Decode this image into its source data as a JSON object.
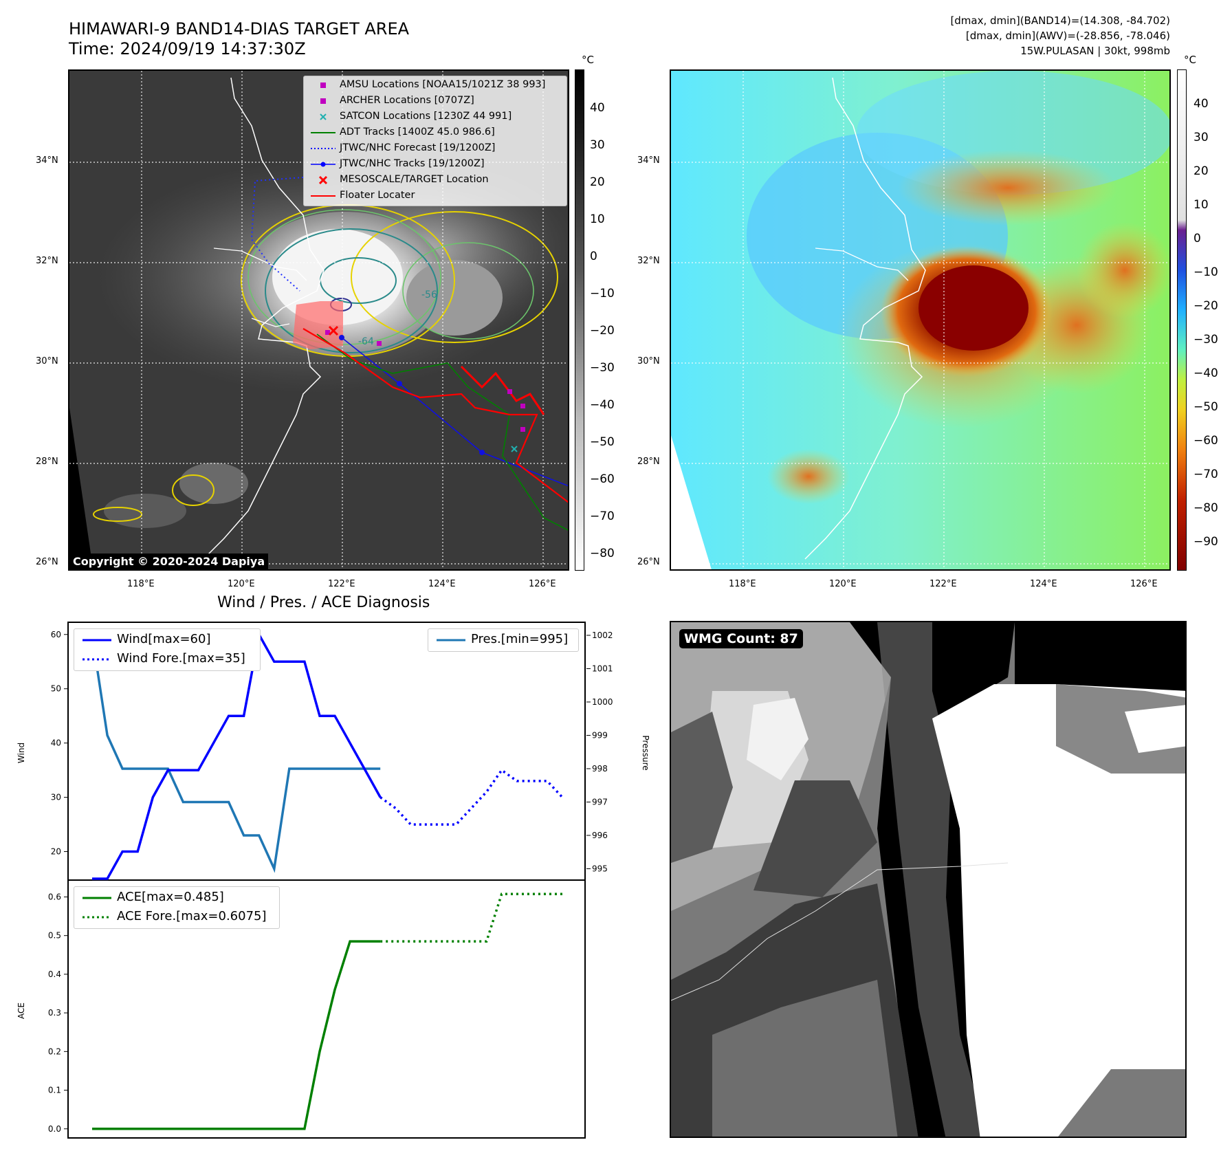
{
  "header": {
    "title_line1": "HIMAWARI-9 BAND14-DIAS TARGET AREA",
    "title_line2": "Time: 2024/09/19 14:37:30Z",
    "right_line1": "[dmax, dmin](BAND14)=(14.308, -84.702)",
    "right_line2": "[dmax, dmin](AWV)=(-28.856, -78.046)",
    "right_line3": "15W.PULASAN | 30kt, 998mb"
  },
  "map": {
    "lat_ticks": [
      "34°N",
      "32°N",
      "30°N",
      "28°N",
      "26°N"
    ],
    "lon_ticks": [
      "118°E",
      "120°E",
      "122°E",
      "124°E",
      "126°E"
    ],
    "copyright": "Copyright © 2020-2024 Dapiya",
    "unit": "°C",
    "ir_colorbar_ticks": [
      "40",
      "30",
      "20",
      "10",
      "0",
      "−10",
      "−20",
      "−30",
      "−40",
      "−50",
      "−60",
      "−70",
      "−80"
    ],
    "wv_colorbar_ticks": [
      "40",
      "30",
      "20",
      "10",
      "0",
      "−10",
      "−20",
      "−30",
      "−40",
      "−50",
      "−60",
      "−70",
      "−80",
      "−90"
    ],
    "contour_labels": [
      "-56",
      "-64"
    ],
    "legend": [
      {
        "label": "AMSU Locations [NOAA15/1021Z 38 993]",
        "symbol": "square",
        "color": "#c000c0"
      },
      {
        "label": "ARCHER Locations [0707Z]",
        "symbol": "square",
        "color": "#c000c0"
      },
      {
        "label": "SATCON Locations [1230Z 44 991]",
        "symbol": "x",
        "color": "#20b0b0"
      },
      {
        "label": "ADT Tracks [1400Z 45.0 986.6]",
        "symbol": "line",
        "color": "#008000"
      },
      {
        "label": "JTWC/NHC Forecast [19/1200Z]",
        "symbol": "dotted",
        "color": "#0000ff"
      },
      {
        "label": "JTWC/NHC Tracks [19/1200Z]",
        "symbol": "line-dot",
        "color": "#0000ff"
      },
      {
        "label": "MESOSCALE/TARGET Location",
        "symbol": "bigx",
        "color": "#ff0000"
      },
      {
        "label": "Floater Locater",
        "symbol": "line",
        "color": "#ff0000"
      }
    ]
  },
  "wmg": {
    "label": "WMG Count: 87"
  },
  "chart_data": [
    {
      "type": "line",
      "title": "Wind / Pres. / ACE Diagnosis",
      "ylabel": "Wind",
      "ylabel_right": "Pressure",
      "ylim": [
        15,
        62
      ],
      "ylim_right": [
        994.7,
        1002.35
      ],
      "yticks": [
        20,
        30,
        40,
        50,
        60
      ],
      "yticks_right": [
        995,
        996,
        997,
        998,
        999,
        1000,
        1001,
        1002
      ],
      "x": [
        0,
        1,
        2,
        3,
        4,
        5,
        6,
        7,
        8,
        9,
        10,
        11,
        12,
        13,
        14,
        15,
        16,
        17,
        18,
        19,
        20,
        21,
        22,
        23,
        24,
        25,
        26,
        27,
        28,
        29,
        30,
        31
      ],
      "series": [
        {
          "name": "Wind[max=60]",
          "style": "solid",
          "color": "#0000ff",
          "axis": "left",
          "x": [
            0,
            1,
            2,
            3,
            4,
            5,
            6,
            7,
            8,
            9,
            10,
            11,
            12,
            13,
            14,
            15,
            16,
            17,
            18,
            19
          ],
          "values": [
            15,
            15,
            20,
            20,
            30,
            35,
            35,
            35,
            40,
            45,
            45,
            60,
            55,
            55,
            55,
            45,
            45,
            40,
            35,
            30
          ]
        },
        {
          "name": "Wind Fore.[max=35]",
          "style": "dotted",
          "color": "#0000ff",
          "axis": "left",
          "x": [
            19,
            20,
            21,
            22,
            23,
            24,
            25,
            26,
            27,
            28,
            29,
            30,
            31
          ],
          "values": [
            30,
            28,
            25,
            25,
            25,
            25,
            28,
            31,
            35,
            33,
            33,
            33,
            30
          ]
        },
        {
          "name": "Pres.[min=995]",
          "style": "solid",
          "color": "#1f77b4",
          "axis": "right",
          "x": [
            0,
            1,
            2,
            3,
            4,
            5,
            6,
            7,
            8,
            9,
            10,
            11,
            12,
            13,
            14,
            15,
            16,
            17,
            18,
            19
          ],
          "values": [
            1002,
            999,
            998,
            998,
            998,
            998,
            997,
            997,
            997,
            997,
            996,
            996,
            995,
            998,
            998,
            998,
            998,
            998,
            998,
            998
          ]
        }
      ]
    },
    {
      "type": "line",
      "ylabel": "ACE",
      "ylim": [
        -0.02,
        0.64
      ],
      "yticks": [
        0.0,
        0.1,
        0.2,
        0.3,
        0.4,
        0.5,
        0.6
      ],
      "series": [
        {
          "name": "ACE[max=0.485]",
          "style": "solid",
          "color": "#008000",
          "x": [
            0,
            1,
            2,
            3,
            4,
            5,
            6,
            7,
            8,
            9,
            10,
            11,
            12,
            13,
            14,
            15,
            16,
            17,
            18,
            19
          ],
          "values": [
            0,
            0,
            0,
            0,
            0,
            0,
            0,
            0,
            0,
            0,
            0,
            0,
            0,
            0,
            0,
            0.2,
            0.36,
            0.485,
            0.485,
            0.485
          ]
        },
        {
          "name": "ACE Fore.[max=0.6075]",
          "style": "dotted",
          "color": "#008000",
          "x": [
            19,
            20,
            21,
            22,
            23,
            24,
            25,
            26,
            27,
            28,
            29,
            30,
            31
          ],
          "values": [
            0.485,
            0.485,
            0.485,
            0.485,
            0.485,
            0.485,
            0.485,
            0.485,
            0.6075,
            0.6075,
            0.6075,
            0.6075,
            0.6075
          ]
        }
      ]
    }
  ]
}
